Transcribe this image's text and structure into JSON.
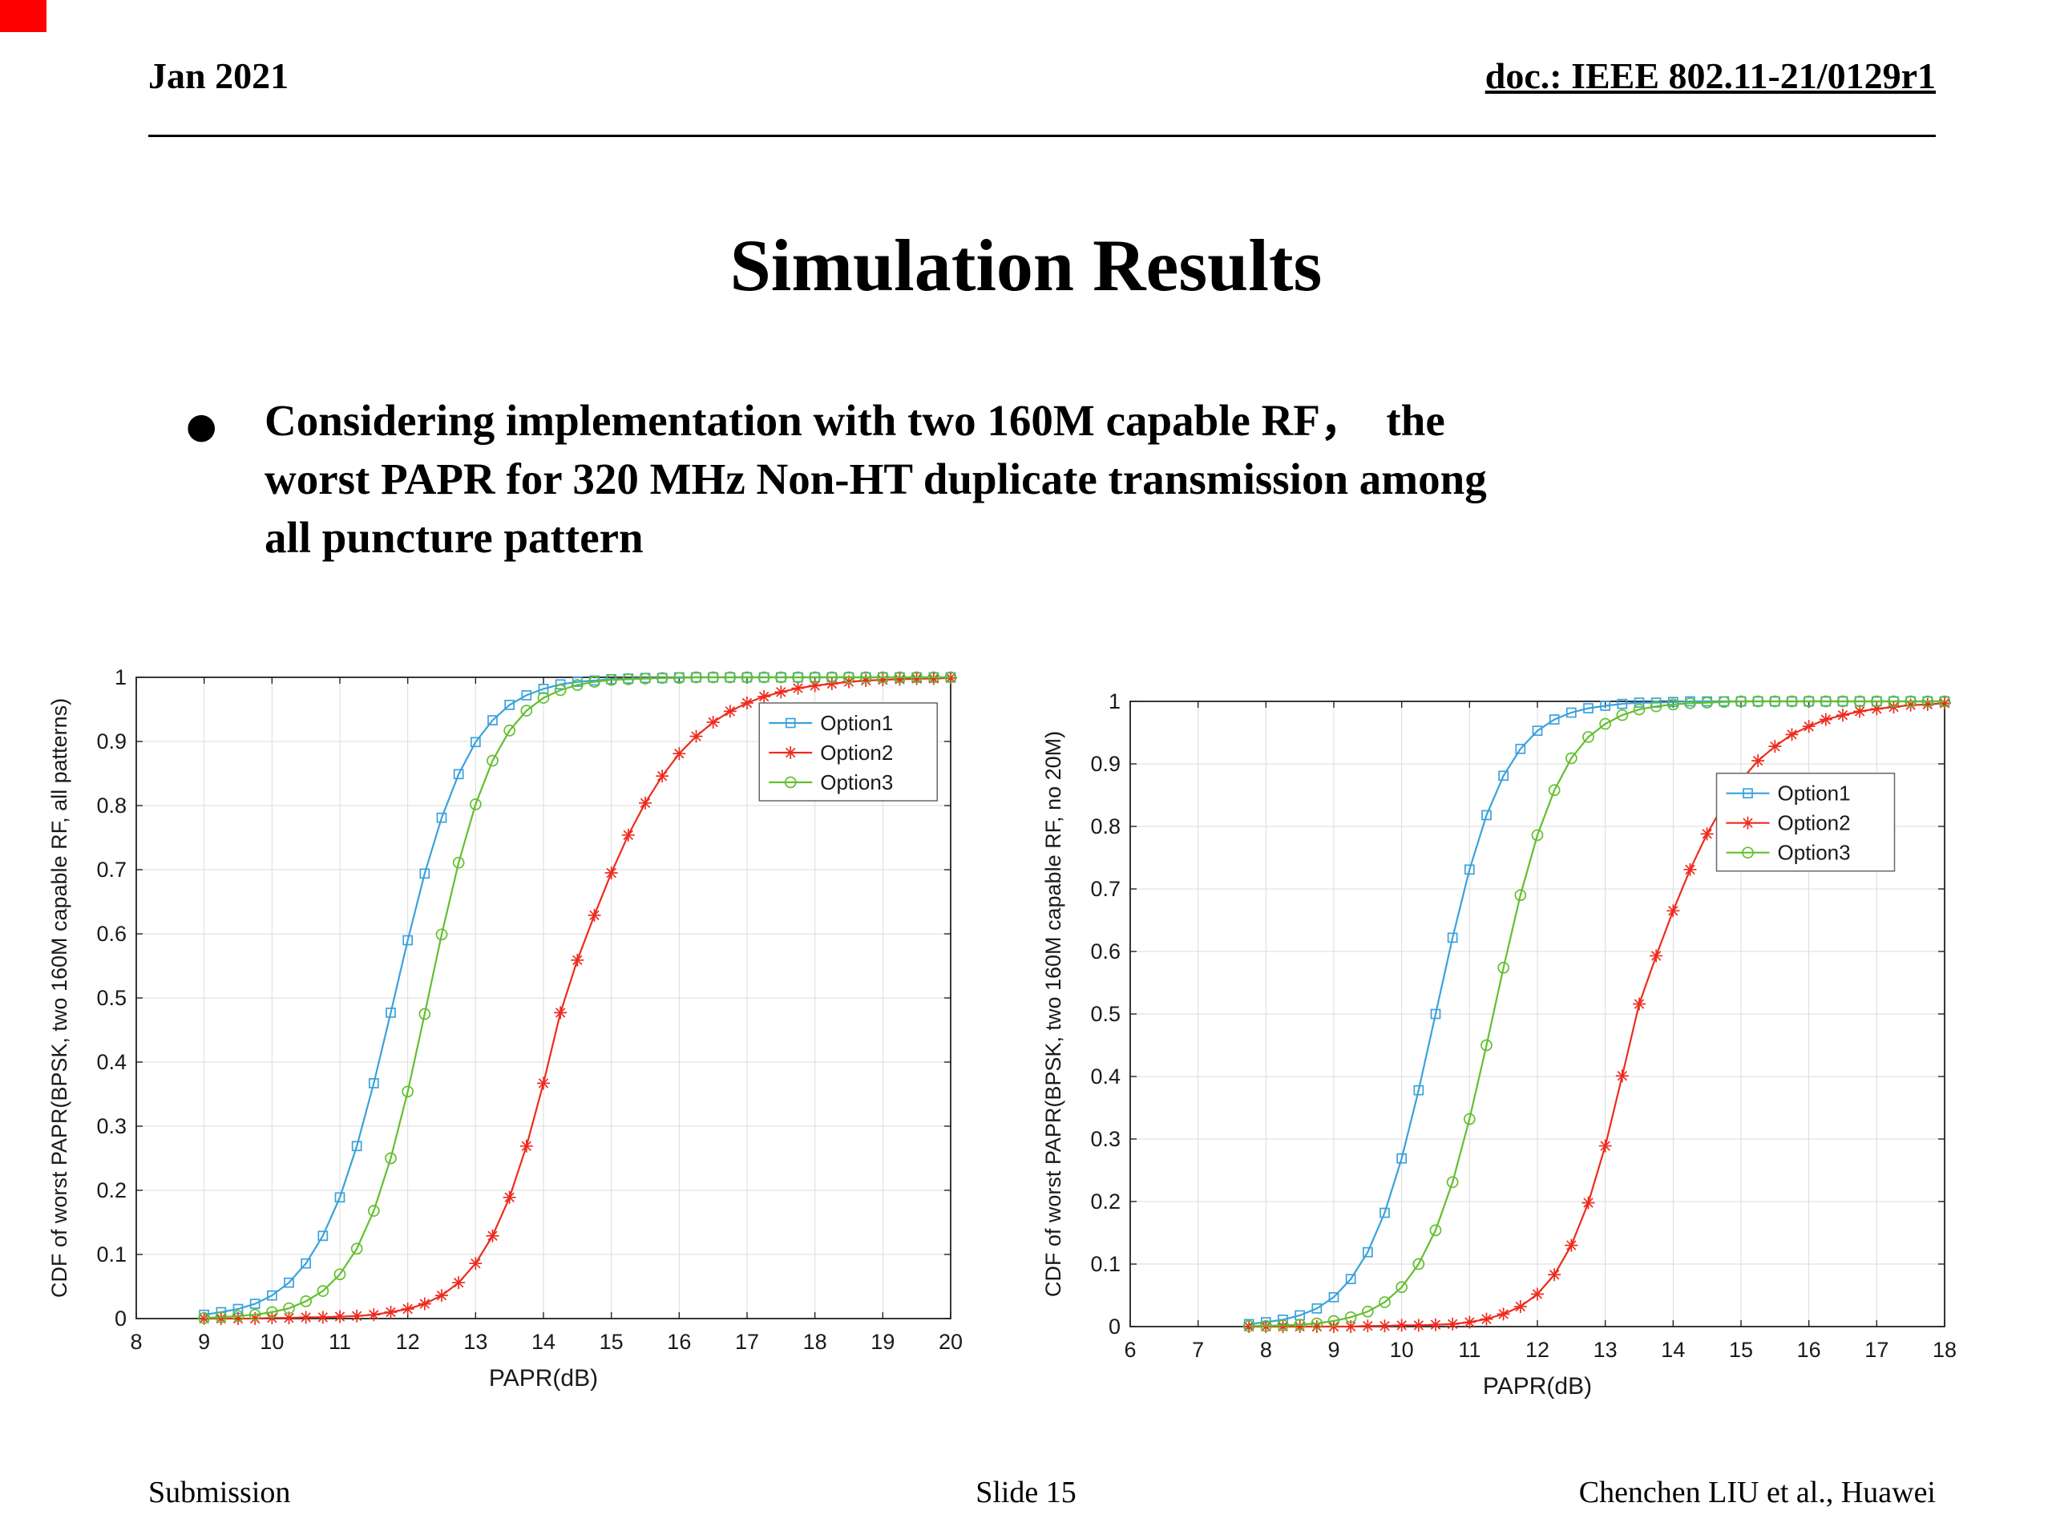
{
  "slide": {
    "header": {
      "left": "Jan 2021",
      "right": "doc.: IEEE 802.11-21/0129r1"
    },
    "title": "Simulation Results",
    "bullet_lines": [
      "Considering implementation with two 160M capable RF，  the",
      "worst PAPR for 320 MHz Non-HT duplicate transmission among",
      "all puncture pattern"
    ],
    "footer": {
      "left": "Submission",
      "center": "Slide 15",
      "right": "Chenchen LIU et al., Huawei"
    },
    "corner_color": "#fe0000"
  },
  "chart_data": [
    {
      "type": "line",
      "title": "",
      "xlabel": "PAPR(dB)",
      "ylabel": "CDF of worst PAPR(BPSK, two 160M capable RF, all patterns)",
      "xlim": [
        8,
        20
      ],
      "xstep": 1,
      "ylim": [
        0,
        1
      ],
      "ystep": 0.1,
      "grid": true,
      "grid_color": "#dbdbdb",
      "legend": {
        "fx": 0.765,
        "fy": 0.96,
        "position": "upper right inside"
      },
      "series": [
        {
          "name": "Option1",
          "color": "#3aa2dc",
          "marker": "square",
          "x0": 9,
          "dx": 0.25,
          "y": [
            0.006,
            0.01,
            0.015,
            0.023,
            0.036,
            0.056,
            0.086,
            0.129,
            0.189,
            0.269,
            0.367,
            0.477,
            0.59,
            0.694,
            0.781,
            0.849,
            0.899,
            0.933,
            0.957,
            0.972,
            0.982,
            0.989,
            0.993,
            0.995,
            0.997,
            0.998,
            0.999,
            0.999,
            1.0,
            1.0,
            1.0,
            1.0,
            1.0,
            1.0,
            1.0,
            1.0,
            1.0,
            1.0,
            1.0,
            1.0,
            1.0,
            1.0,
            1.0,
            1.0,
            1.0
          ]
        },
        {
          "name": "Option2",
          "color": "#ee2b1e",
          "marker": "asterisk",
          "x0": 9,
          "dx": 0.25,
          "y": [
            0.0,
            0.0,
            0.0,
            0.0,
            0.001,
            0.001,
            0.002,
            0.002,
            0.003,
            0.004,
            0.006,
            0.01,
            0.015,
            0.023,
            0.036,
            0.056,
            0.086,
            0.129,
            0.189,
            0.269,
            0.367,
            0.477,
            0.559,
            0.629,
            0.695,
            0.754,
            0.804,
            0.846,
            0.881,
            0.908,
            0.93,
            0.947,
            0.96,
            0.97,
            0.977,
            0.983,
            0.987,
            0.99,
            0.993,
            0.995,
            0.996,
            0.997,
            0.998,
            0.998,
            0.999
          ]
        },
        {
          "name": "Option3",
          "color": "#63bf2f",
          "marker": "circle",
          "x0": 9,
          "dx": 0.25,
          "y": [
            0.001,
            0.002,
            0.004,
            0.006,
            0.01,
            0.016,
            0.027,
            0.043,
            0.069,
            0.109,
            0.168,
            0.25,
            0.354,
            0.475,
            0.599,
            0.711,
            0.802,
            0.87,
            0.917,
            0.948,
            0.968,
            0.98,
            0.988,
            0.993,
            0.996,
            0.997,
            0.998,
            0.999,
            0.999,
            1.0,
            1.0,
            1.0,
            1.0,
            1.0,
            1.0,
            1.0,
            1.0,
            1.0,
            1.0,
            1.0,
            1.0,
            1.0,
            1.0,
            1.0,
            1.0
          ]
        }
      ]
    },
    {
      "type": "line",
      "title": "",
      "xlabel": "PAPR(dB)",
      "ylabel": "CDF of worst PAPR(BPSK, two 160M capable RF, no 20M)",
      "xlim": [
        6,
        18
      ],
      "xstep": 1,
      "ylim": [
        0,
        1
      ],
      "ystep": 0.1,
      "grid": true,
      "grid_color": "#dbdbdb",
      "legend": {
        "fx": 0.72,
        "fy": 0.885,
        "position": "right inside"
      },
      "series": [
        {
          "name": "Option1",
          "color": "#3aa2dc",
          "marker": "square",
          "x0": 7.75,
          "dx": 0.25,
          "y": [
            0.004,
            0.007,
            0.011,
            0.018,
            0.029,
            0.047,
            0.076,
            0.119,
            0.182,
            0.269,
            0.378,
            0.5,
            0.622,
            0.731,
            0.818,
            0.881,
            0.924,
            0.953,
            0.971,
            0.982,
            0.989,
            0.993,
            0.996,
            0.998,
            0.998,
            0.999,
            1.0,
            1.0,
            1.0,
            1.0,
            1.0,
            1.0,
            1.0,
            1.0,
            1.0,
            1.0,
            1.0,
            1.0,
            1.0,
            1.0,
            1.0,
            1.0
          ]
        },
        {
          "name": "Option2",
          "color": "#ee2b1e",
          "marker": "asterisk",
          "x0": 7.75,
          "dx": 0.25,
          "y": [
            0.0,
            0.0,
            0.0,
            0.0,
            0.0,
            0.0,
            0.0,
            0.001,
            0.001,
            0.002,
            0.002,
            0.003,
            0.004,
            0.007,
            0.012,
            0.02,
            0.032,
            0.052,
            0.083,
            0.13,
            0.198,
            0.289,
            0.401,
            0.516,
            0.593,
            0.665,
            0.731,
            0.788,
            0.836,
            0.874,
            0.905,
            0.928,
            0.947,
            0.96,
            0.971,
            0.978,
            0.984,
            0.988,
            0.991,
            0.994,
            0.995,
            0.997
          ]
        },
        {
          "name": "Option3",
          "color": "#63bf2f",
          "marker": "circle",
          "x0": 7.75,
          "dx": 0.25,
          "y": [
            0.001,
            0.001,
            0.002,
            0.003,
            0.005,
            0.009,
            0.015,
            0.024,
            0.039,
            0.063,
            0.1,
            0.154,
            0.231,
            0.332,
            0.45,
            0.574,
            0.69,
            0.786,
            0.858,
            0.909,
            0.943,
            0.964,
            0.978,
            0.987,
            0.992,
            0.995,
            0.997,
            0.998,
            0.999,
            1.0,
            1.0,
            1.0,
            1.0,
            1.0,
            1.0,
            1.0,
            1.0,
            1.0,
            1.0,
            1.0,
            1.0,
            1.0
          ]
        }
      ]
    }
  ]
}
